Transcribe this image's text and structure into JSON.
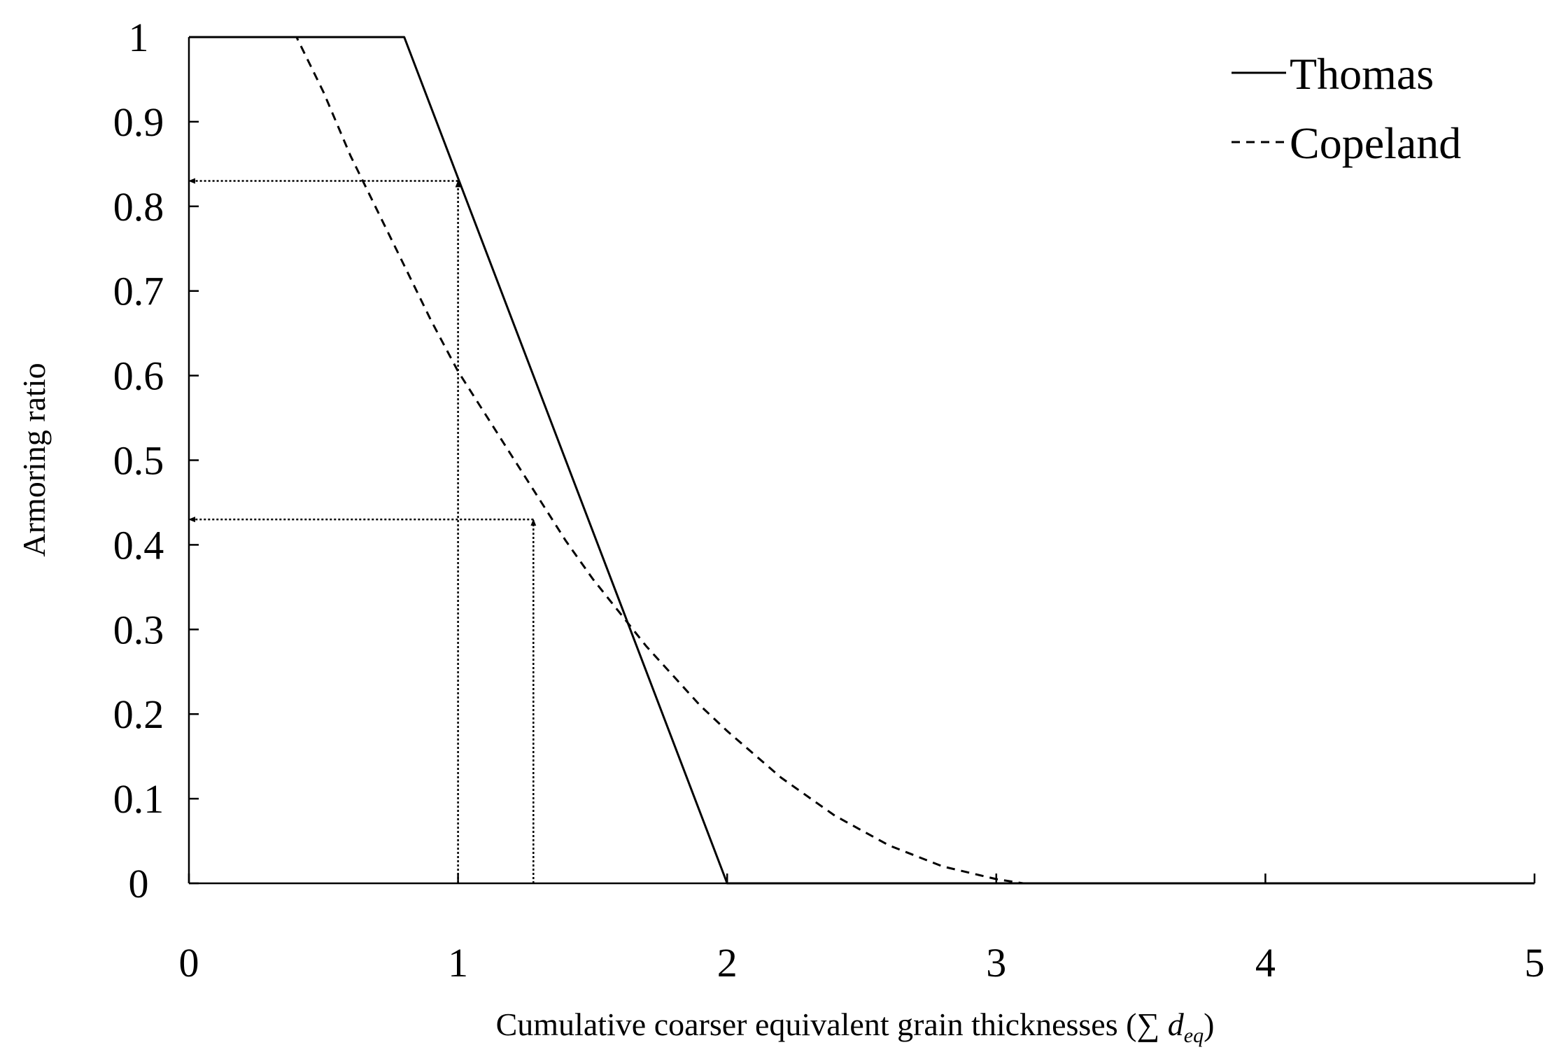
{
  "chart_data": {
    "type": "line",
    "xlabel_main": "Cumulative coarser equivalent grain thicknesses (∑ ",
    "xlabel_var": "d",
    "xlabel_sub": "eq",
    "xlabel_close": ")",
    "ylabel": "Armoring ratio",
    "xlim": [
      0,
      5
    ],
    "ylim": [
      0,
      1
    ],
    "xticks": [
      0,
      1,
      2,
      3,
      4,
      5
    ],
    "xtick_labels": [
      "0",
      "1",
      "2",
      "3",
      "4",
      "5"
    ],
    "yticks": [
      0,
      0.1,
      0.2,
      0.3,
      0.4,
      0.5,
      0.6,
      0.7,
      0.8,
      0.9,
      1
    ],
    "ytick_labels": [
      "0",
      "0.1",
      "0.2",
      "0.3",
      "0.4",
      "0.5",
      "0.6",
      "0.7",
      "0.8",
      "0.9",
      "1"
    ],
    "grid": false,
    "legend_position": "top-right",
    "series": [
      {
        "name": "Thomas",
        "style": "solid",
        "x": [
          0,
          0.8,
          2.0,
          5.0
        ],
        "y": [
          1,
          1,
          0,
          0
        ]
      },
      {
        "name": "Copeland",
        "style": "dashed",
        "x": [
          0,
          0.4,
          0.5,
          0.6,
          0.7,
          0.8,
          0.9,
          1.0,
          1.1,
          1.2,
          1.3,
          1.4,
          1.5,
          1.6,
          1.7,
          1.8,
          1.9,
          2.0,
          2.2,
          2.4,
          2.6,
          2.8,
          3.0,
          3.1
        ],
        "y": [
          1,
          1,
          0.935,
          0.86,
          0.795,
          0.73,
          0.665,
          0.605,
          0.555,
          0.505,
          0.455,
          0.405,
          0.36,
          0.32,
          0.28,
          0.245,
          0.21,
          0.18,
          0.125,
          0.08,
          0.045,
          0.02,
          0.005,
          0
        ]
      }
    ],
    "annotations": [
      {
        "kind": "arrow-up",
        "x": 1.0,
        "y_from": 0,
        "y_to": 0.83
      },
      {
        "kind": "arrow-left",
        "y": 0.83,
        "x_from": 1.0,
        "x_to": 0
      },
      {
        "kind": "arrow-up",
        "x": 1.28,
        "y_from": 0,
        "y_to": 0.43
      },
      {
        "kind": "arrow-left",
        "y": 0.43,
        "x_from": 1.28,
        "x_to": 0
      }
    ]
  }
}
